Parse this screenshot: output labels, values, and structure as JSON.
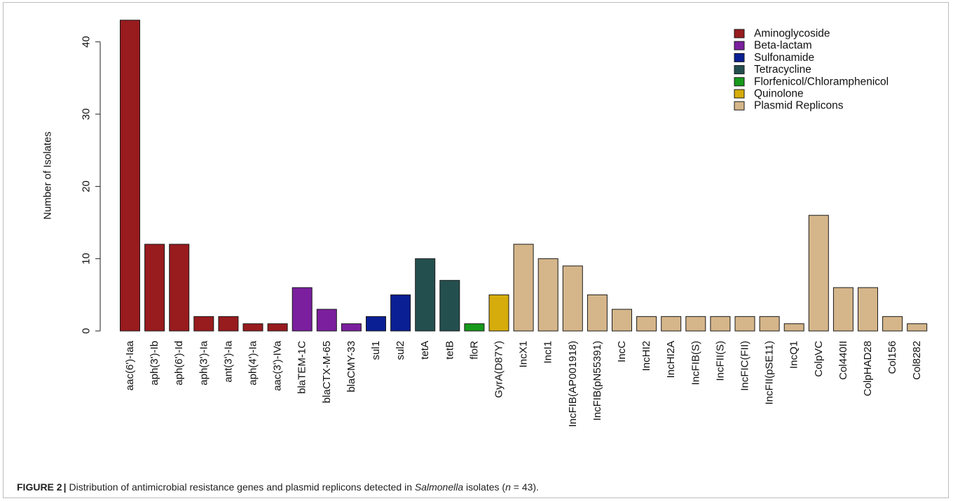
{
  "chart_data": {
    "type": "bar",
    "ylabel": "Number of Isolates",
    "xlabel": "",
    "ylim": [
      0,
      43
    ],
    "yticks": [
      0,
      10,
      20,
      30,
      40
    ],
    "grid": false,
    "legend_position": "top-right",
    "groups": [
      {
        "name": "Aminoglycoside",
        "color": "#981b1e"
      },
      {
        "name": "Beta-lactam",
        "color": "#7b1f9e"
      },
      {
        "name": "Sulfonamide",
        "color": "#0a1f94"
      },
      {
        "name": "Tetracycline",
        "color": "#244f4f"
      },
      {
        "name": "Florfenicol/Chloramphenicol",
        "color": "#179a1b"
      },
      {
        "name": "Quinolone",
        "color": "#d6ac0c"
      },
      {
        "name": "Plasmid Replicons",
        "color": "#d5b68a"
      }
    ],
    "bars": [
      {
        "label": "aac(6')-Iaa",
        "value": 43,
        "group": 0
      },
      {
        "label": "aph(3')-Ib",
        "value": 12,
        "group": 0
      },
      {
        "label": "aph(6')-Id",
        "value": 12,
        "group": 0
      },
      {
        "label": "aph(3')-Ia",
        "value": 2,
        "group": 0
      },
      {
        "label": "ant(3')-Ia",
        "value": 2,
        "group": 0
      },
      {
        "label": "aph(4')-Ia",
        "value": 1,
        "group": 0
      },
      {
        "label": "aac(3')-IVa",
        "value": 1,
        "group": 0
      },
      {
        "label": "blaTEM-1C",
        "value": 6,
        "group": 1
      },
      {
        "label": "blaCTX-M-65",
        "value": 3,
        "group": 1
      },
      {
        "label": "blaCMY-33",
        "value": 1,
        "group": 1
      },
      {
        "label": "sul1",
        "value": 2,
        "group": 2
      },
      {
        "label": "sul2",
        "value": 5,
        "group": 2
      },
      {
        "label": "tetA",
        "value": 10,
        "group": 3
      },
      {
        "label": "tetB",
        "value": 7,
        "group": 3
      },
      {
        "label": "floR",
        "value": 1,
        "group": 4
      },
      {
        "label": "GyrA(D87Y)",
        "value": 5,
        "group": 5
      },
      {
        "label": "IncX1",
        "value": 12,
        "group": 6
      },
      {
        "label": "IncI1",
        "value": 10,
        "group": 6
      },
      {
        "label": "IncFIB(AP001918)",
        "value": 9,
        "group": 6
      },
      {
        "label": "IncFIB(pN55391)",
        "value": 5,
        "group": 6
      },
      {
        "label": "IncC",
        "value": 3,
        "group": 6
      },
      {
        "label": "IncHI2",
        "value": 2,
        "group": 6
      },
      {
        "label": "IncHI2A",
        "value": 2,
        "group": 6
      },
      {
        "label": "IncFIB(S)",
        "value": 2,
        "group": 6
      },
      {
        "label": "IncFII(S)",
        "value": 2,
        "group": 6
      },
      {
        "label": "IncFIC(FII)",
        "value": 2,
        "group": 6
      },
      {
        "label": "IncFII(pSE11)",
        "value": 2,
        "group": 6
      },
      {
        "label": "IncQ1",
        "value": 1,
        "group": 6
      },
      {
        "label": "ColpVC",
        "value": 16,
        "group": 6
      },
      {
        "label": "Col440II",
        "value": 6,
        "group": 6
      },
      {
        "label": "ColpHAD28",
        "value": 6,
        "group": 6
      },
      {
        "label": "Col156",
        "value": 2,
        "group": 6
      },
      {
        "label": "Col8282",
        "value": 1,
        "group": 6
      }
    ]
  },
  "caption": {
    "figure_label": "FIGURE 2",
    "separator": "|",
    "text_before_italic": "Distribution of antimicrobial resistance genes and plasmid replicons detected in ",
    "italic": "Salmonella",
    "text_after_italic": " isolates (",
    "n_symbol": "n",
    "text_end": " = 43)."
  }
}
